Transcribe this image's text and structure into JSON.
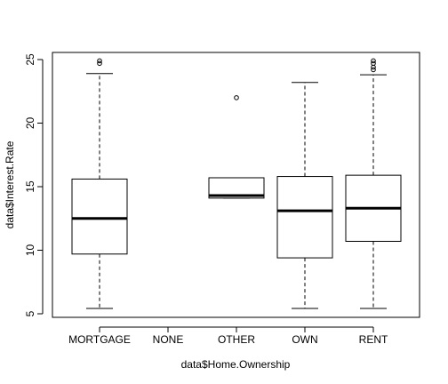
{
  "chart_data": {
    "type": "boxplot",
    "title": "",
    "xlabel": "data$Home.Ownership",
    "ylabel": "data$Interest.Rate",
    "ylim": [
      5,
      25
    ],
    "yticks": [
      5,
      10,
      15,
      20,
      25
    ],
    "grid": false,
    "categories": [
      "MORTGAGE",
      "NONE",
      "OTHER",
      "OWN",
      "RENT"
    ],
    "boxes": [
      {
        "category": "MORTGAGE",
        "lower_whisker": 5.42,
        "q1": 9.7,
        "median": 12.5,
        "q3": 15.6,
        "upper_whisker": 23.9,
        "outliers": [
          24.7,
          24.9
        ]
      },
      {
        "category": "NONE",
        "lower_whisker": null,
        "q1": null,
        "median": null,
        "q3": null,
        "upper_whisker": null,
        "outliers": []
      },
      {
        "category": "OTHER",
        "lower_whisker": 14.1,
        "q1": 14.1,
        "median": 14.3,
        "q3": 15.7,
        "upper_whisker": 15.7,
        "outliers": [
          22.0
        ]
      },
      {
        "category": "OWN",
        "lower_whisker": 5.42,
        "q1": 9.4,
        "median": 13.1,
        "q3": 15.8,
        "upper_whisker": 23.2,
        "outliers": []
      },
      {
        "category": "RENT",
        "lower_whisker": 5.42,
        "q1": 10.7,
        "median": 13.3,
        "q3": 15.9,
        "upper_whisker": 23.8,
        "outliers": [
          24.2,
          24.4,
          24.7,
          24.9
        ]
      }
    ]
  }
}
